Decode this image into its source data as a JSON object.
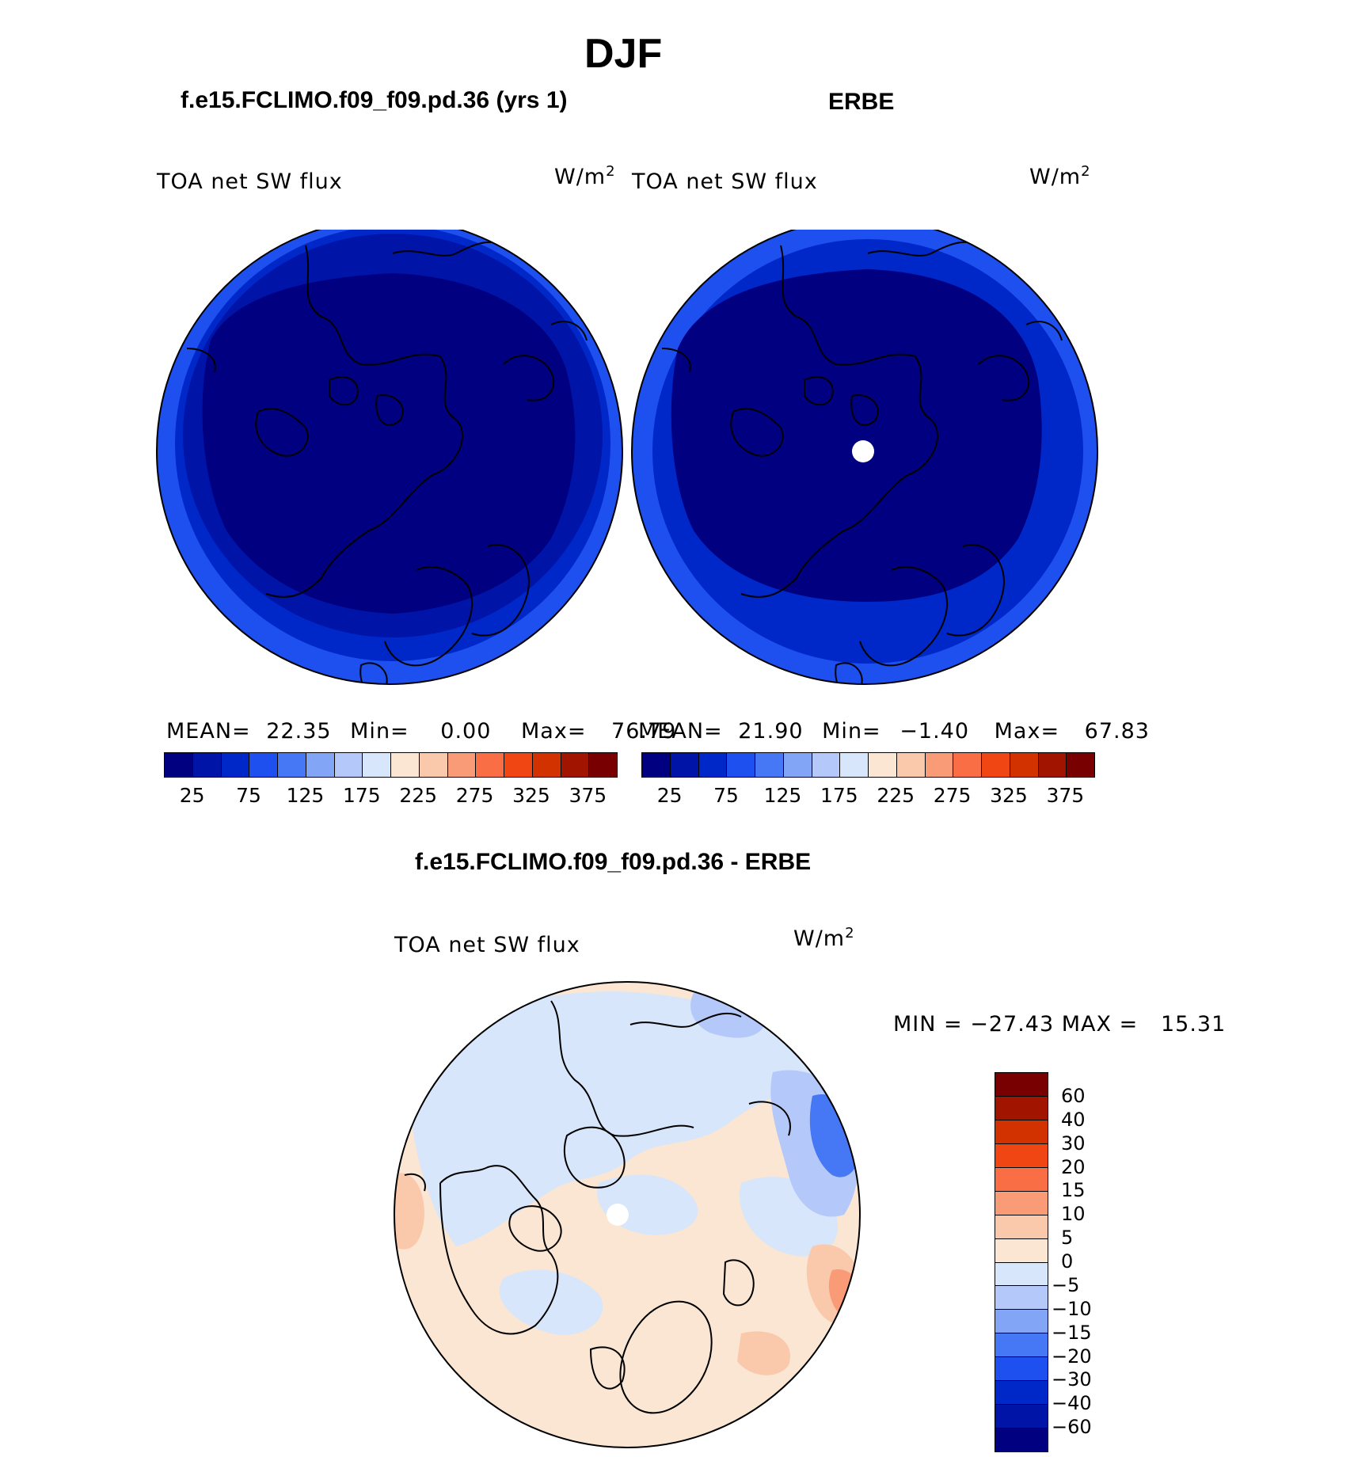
{
  "figure": {
    "season": "DJF",
    "panel_left_title": "f.e15.FCLIMO.f09_f09.pd.36 (yrs 1)",
    "panel_right_title": "ERBE",
    "diff_title": "f.e15.FCLIMO.f09_f09.pd.36 - ERBE"
  },
  "panels": {
    "left": {
      "variable": "TOA net SW flux",
      "units_base": "W/m",
      "units_exp": "2",
      "stats": {
        "mean_label": "MEAN=",
        "mean": "22.35",
        "min_label": "Min=",
        "min": "0.00",
        "max_label": "Max=",
        "max": "76.79"
      }
    },
    "right": {
      "variable": "TOA net SW flux",
      "units_base": "W/m",
      "units_exp": "2",
      "stats": {
        "mean_label": "MEAN=",
        "mean": "21.90",
        "min_label": "Min=",
        "min": "−1.40",
        "max_label": "Max=",
        "max": "67.83"
      }
    },
    "diff": {
      "variable": "TOA net SW flux",
      "units_base": "W/m",
      "units_exp": "2",
      "stats_text": "MIN = −27.43 MAX =   15.31"
    }
  },
  "colorbar_top": {
    "colors": [
      "#000080",
      "#0014a8",
      "#0028c8",
      "#1e50f0",
      "#4678f5",
      "#82a5f5",
      "#b4c8fa",
      "#d7e6fa",
      "#fae6d2",
      "#fac8aa",
      "#fa9b78",
      "#fa6e46",
      "#f04614",
      "#d23200",
      "#a01400",
      "#780000"
    ],
    "tick_labels": [
      "25",
      "75",
      "125",
      "175",
      "225",
      "275",
      "325",
      "375"
    ]
  },
  "colorbar_diff": {
    "colors": [
      "#780000",
      "#a01400",
      "#d23200",
      "#f04614",
      "#fa6e46",
      "#fa9b78",
      "#fac8aa",
      "#fae6d2",
      "#d7e6fa",
      "#b4c8fa",
      "#82a5f5",
      "#4678f5",
      "#1e50f0",
      "#0028c8",
      "#0014a8",
      "#000080"
    ],
    "tick_labels": [
      "60",
      "40",
      "30",
      "20",
      "15",
      "10",
      "5",
      "0",
      "−5",
      "−10",
      "−15",
      "−20",
      "−30",
      "−40",
      "−60"
    ]
  },
  "map_fills": {
    "left_outer": "#1e50f0",
    "left_mid": "#0028c8",
    "left_inner": "#0014a8",
    "left_core": "#000080",
    "right_outer": "#1e50f0",
    "right_mid": "#0028c8",
    "right_core": "#000080",
    "diff_base": "#fae6d2",
    "diff_neg_light": "#d7e6fa",
    "diff_neg_mid": "#b4c8fa",
    "diff_neg_strong": "#4678f5",
    "diff_pos_mid": "#fac8aa",
    "diff_pos_strong": "#fa9b78"
  }
}
